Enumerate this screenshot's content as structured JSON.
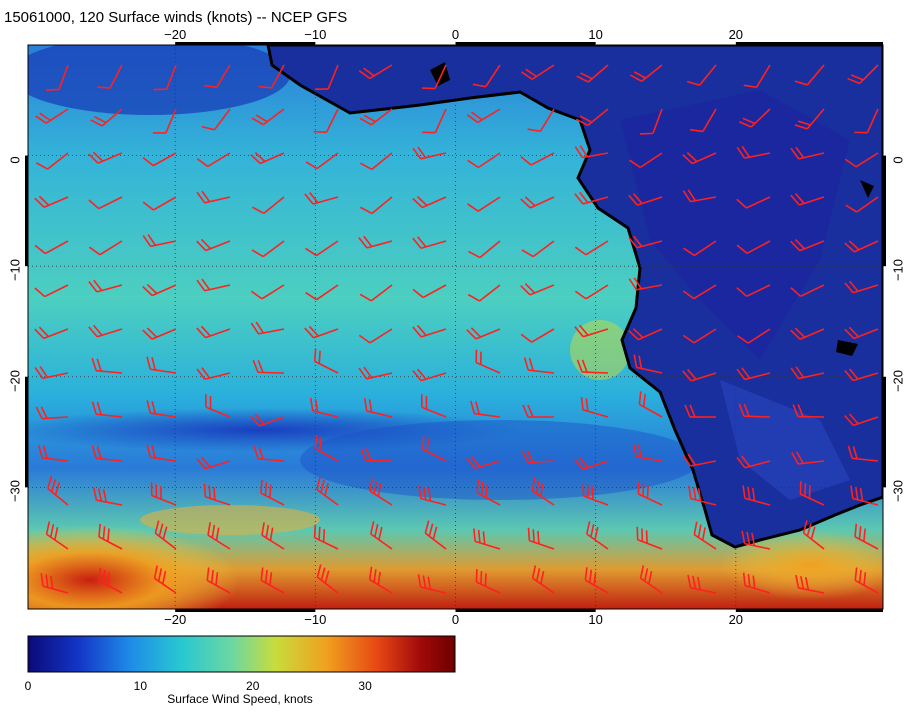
{
  "title": "15061000, 120 Surface winds (knots) -- NCEP GFS",
  "axes": {
    "lon_ticks": [
      "−20",
      "−10",
      "0",
      "10",
      "20"
    ],
    "lat_ticks": [
      "0",
      "−10",
      "−20",
      "−30"
    ]
  },
  "map_extent": {
    "lon_min": -30.5,
    "lon_max": 30.5,
    "lat_max": 10,
    "lat_min": -41
  },
  "colorbar": {
    "title": "Surface Wind Speed, knots",
    "labels": [
      "0",
      "10",
      "20",
      "30"
    ],
    "values": [
      0,
      10,
      20,
      30
    ],
    "range": [
      0,
      38
    ],
    "colors": [
      "#0a0a78",
      "#1436c8",
      "#1e8ce6",
      "#28c8d2",
      "#6ed7a0",
      "#c8dc3c",
      "#f0a01e",
      "#e64614",
      "#a00a0a",
      "#6e0000"
    ]
  },
  "colors": {
    "barb": "#ff2020",
    "coast": "#000000",
    "grid": "#333333",
    "land": "#1a2f9e",
    "ocean": "#2aa0dc"
  },
  "icons": [
    "wind-barb-icon"
  ]
}
